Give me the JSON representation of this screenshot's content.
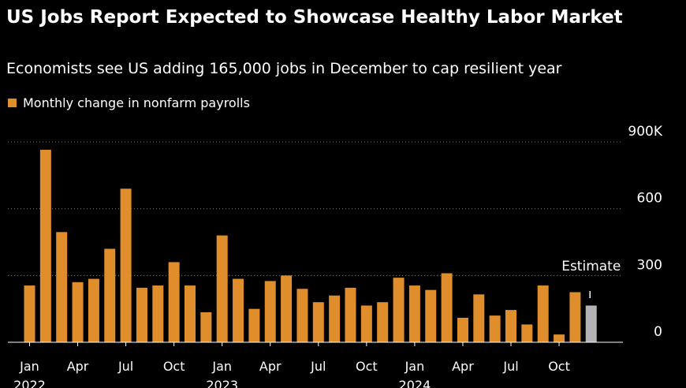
{
  "colors": {
    "bar": "#e08e2b",
    "estimate": "#b3b3b3",
    "background": "#000000",
    "text": "#ffffff",
    "grid": "#777777"
  },
  "chart_data": {
    "type": "bar",
    "title": "US Jobs Report Expected to Showcase Healthy Labor Market",
    "subtitle": "Economists see US adding 165,000 jobs in December to cap resilient year",
    "ylim": [
      0,
      900
    ],
    "y_ticks": [
      {
        "value": 900,
        "label": "900K"
      },
      {
        "value": 600,
        "label": "600"
      },
      {
        "value": 300,
        "label": "300"
      },
      {
        "value": 0,
        "label": "0"
      }
    ],
    "grid": true,
    "legend_position": "top-left",
    "series": [
      {
        "name": "Monthly change in nonfarm payrolls",
        "categories": [
          "Jan 2022",
          "Feb 2022",
          "Mar 2022",
          "Apr 2022",
          "May 2022",
          "Jun 2022",
          "Jul 2022",
          "Aug 2022",
          "Sep 2022",
          "Oct 2022",
          "Nov 2022",
          "Dec 2022",
          "Jan 2023",
          "Feb 2023",
          "Mar 2023",
          "Apr 2023",
          "May 2023",
          "Jun 2023",
          "Jul 2023",
          "Aug 2023",
          "Sep 2023",
          "Oct 2023",
          "Nov 2023",
          "Dec 2023",
          "Jan 2024",
          "Feb 2024",
          "Mar 2024",
          "Apr 2024",
          "May 2024",
          "Jun 2024",
          "Jul 2024",
          "Aug 2024",
          "Sep 2024",
          "Oct 2024",
          "Nov 2024"
        ],
        "values": [
          255,
          865,
          495,
          270,
          285,
          420,
          690,
          245,
          255,
          360,
          255,
          135,
          480,
          285,
          150,
          275,
          300,
          240,
          180,
          210,
          245,
          165,
          180,
          290,
          255,
          235,
          310,
          110,
          215,
          120,
          145,
          80,
          255,
          35,
          225
        ]
      },
      {
        "name": "Estimate",
        "categories": [
          "Dec 2024"
        ],
        "values": [
          165
        ]
      }
    ],
    "x_tick_labels": [
      {
        "index": 0,
        "month": "Jan",
        "year": "2022"
      },
      {
        "index": 3,
        "month": "Apr",
        "year": ""
      },
      {
        "index": 6,
        "month": "Jul",
        "year": ""
      },
      {
        "index": 9,
        "month": "Oct",
        "year": ""
      },
      {
        "index": 12,
        "month": "Jan",
        "year": "2023"
      },
      {
        "index": 15,
        "month": "Apr",
        "year": ""
      },
      {
        "index": 18,
        "month": "Jul",
        "year": ""
      },
      {
        "index": 21,
        "month": "Oct",
        "year": ""
      },
      {
        "index": 24,
        "month": "Jan",
        "year": "2024"
      },
      {
        "index": 27,
        "month": "Apr",
        "year": ""
      },
      {
        "index": 30,
        "month": "Jul",
        "year": ""
      },
      {
        "index": 33,
        "month": "Oct",
        "year": ""
      }
    ],
    "annotation": "Estimate"
  }
}
